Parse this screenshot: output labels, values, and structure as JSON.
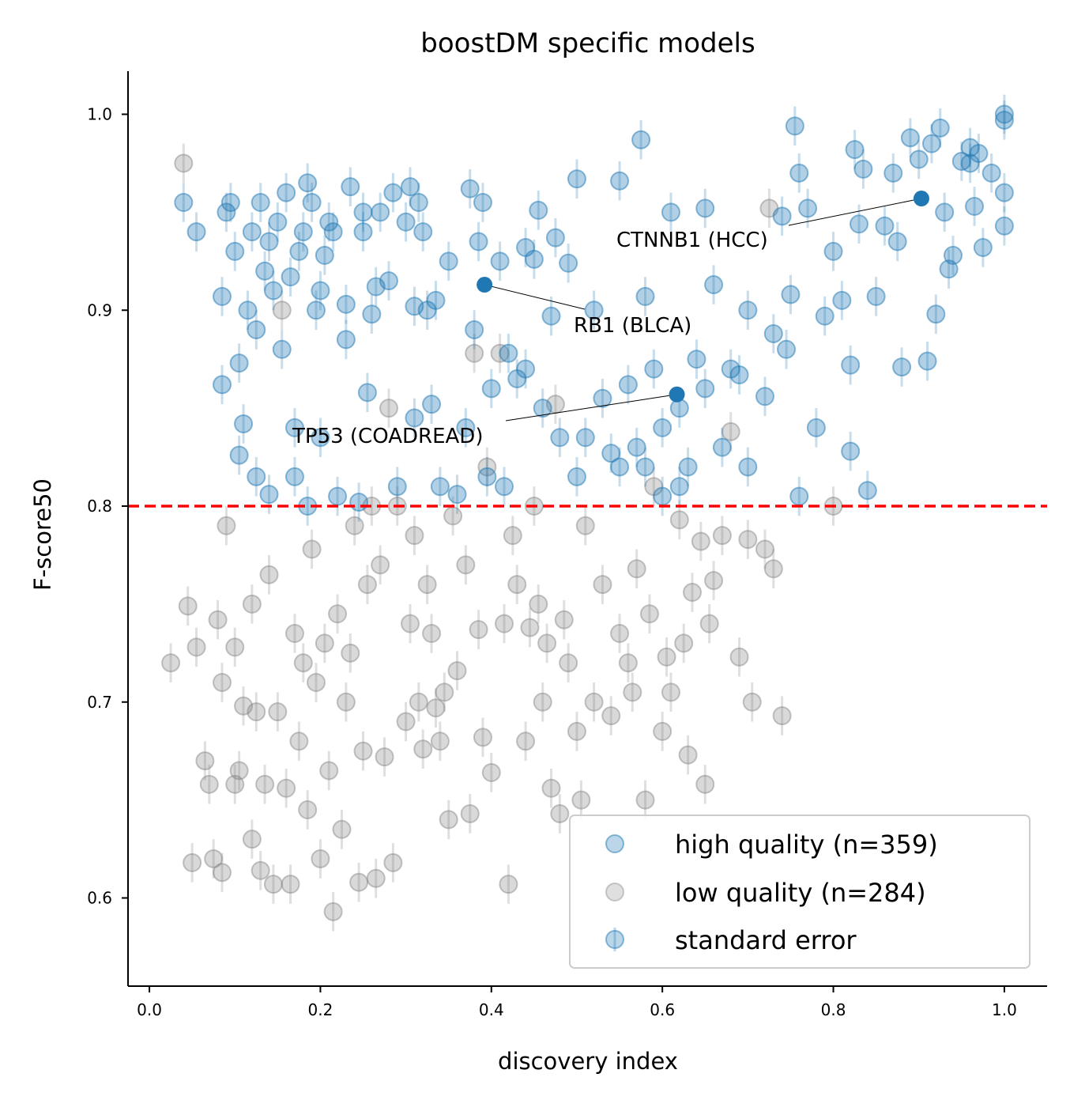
{
  "chart_data": {
    "type": "scatter",
    "title": "boostDM specific models",
    "xlabel": "discovery index",
    "ylabel": "F-score50",
    "xlim": [
      -0.025,
      1.05
    ],
    "ylim": [
      0.555,
      1.022
    ],
    "xticks": [
      0.0,
      0.2,
      0.4,
      0.6,
      0.8,
      1.0
    ],
    "xtick_labels": [
      "0.0",
      "0.2",
      "0.4",
      "0.6",
      "0.8",
      "1.0"
    ],
    "yticks": [
      0.6,
      0.7,
      0.8,
      0.9,
      1.0
    ],
    "ytick_labels": [
      "0.6",
      "0.7",
      "0.8",
      "0.9",
      "1.0"
    ],
    "threshold": {
      "y": 0.8,
      "color": "#ff0000",
      "style": "dashed"
    },
    "default_standard_error": 0.01,
    "legend": {
      "placement": "lower-right",
      "entries": [
        "high quality (n=359)",
        "low quality (n=284)",
        "standard error"
      ]
    },
    "series": [
      {
        "name": "high quality",
        "color": "#1f77b4",
        "alpha": 0.35,
        "points": [
          [
            0.04,
            0.955
          ],
          [
            0.055,
            0.94
          ],
          [
            0.085,
            0.907
          ],
          [
            0.085,
            0.862
          ],
          [
            0.09,
            0.95
          ],
          [
            0.095,
            0.955
          ],
          [
            0.1,
            0.93
          ],
          [
            0.105,
            0.873
          ],
          [
            0.105,
            0.826
          ],
          [
            0.11,
            0.842
          ],
          [
            0.115,
            0.9
          ],
          [
            0.12,
            0.94
          ],
          [
            0.125,
            0.89
          ],
          [
            0.125,
            0.815
          ],
          [
            0.13,
            0.955
          ],
          [
            0.135,
            0.92
          ],
          [
            0.14,
            0.935
          ],
          [
            0.14,
            0.806
          ],
          [
            0.145,
            0.91
          ],
          [
            0.15,
            0.945
          ],
          [
            0.155,
            0.88
          ],
          [
            0.16,
            0.96
          ],
          [
            0.165,
            0.917
          ],
          [
            0.17,
            0.84
          ],
          [
            0.17,
            0.815
          ],
          [
            0.175,
            0.93
          ],
          [
            0.18,
            0.94
          ],
          [
            0.185,
            0.965
          ],
          [
            0.185,
            0.8
          ],
          [
            0.19,
            0.955
          ],
          [
            0.195,
            0.9
          ],
          [
            0.2,
            0.91
          ],
          [
            0.2,
            0.835
          ],
          [
            0.205,
            0.928
          ],
          [
            0.21,
            0.945
          ],
          [
            0.215,
            0.94
          ],
          [
            0.22,
            0.805
          ],
          [
            0.23,
            0.903
          ],
          [
            0.23,
            0.885
          ],
          [
            0.235,
            0.963
          ],
          [
            0.245,
            0.802
          ],
          [
            0.25,
            0.95
          ],
          [
            0.25,
            0.94
          ],
          [
            0.255,
            0.858
          ],
          [
            0.26,
            0.898
          ],
          [
            0.265,
            0.912
          ],
          [
            0.27,
            0.95
          ],
          [
            0.28,
            0.915
          ],
          [
            0.285,
            0.96
          ],
          [
            0.29,
            0.81
          ],
          [
            0.3,
            0.945
          ],
          [
            0.305,
            0.963
          ],
          [
            0.31,
            0.902
          ],
          [
            0.31,
            0.845
          ],
          [
            0.315,
            0.955
          ],
          [
            0.32,
            0.94
          ],
          [
            0.325,
            0.9
          ],
          [
            0.33,
            0.852
          ],
          [
            0.335,
            0.905
          ],
          [
            0.34,
            0.81
          ],
          [
            0.35,
            0.925
          ],
          [
            0.36,
            0.806
          ],
          [
            0.37,
            0.84
          ],
          [
            0.375,
            0.962
          ],
          [
            0.38,
            0.89
          ],
          [
            0.385,
            0.935
          ],
          [
            0.39,
            0.955
          ],
          [
            0.395,
            0.815
          ],
          [
            0.4,
            0.86
          ],
          [
            0.41,
            0.925
          ],
          [
            0.415,
            0.81
          ],
          [
            0.42,
            0.878
          ],
          [
            0.43,
            0.865
          ],
          [
            0.44,
            0.932
          ],
          [
            0.44,
            0.87
          ],
          [
            0.45,
            0.926
          ],
          [
            0.455,
            0.951
          ],
          [
            0.46,
            0.85
          ],
          [
            0.47,
            0.897
          ],
          [
            0.475,
            0.937
          ],
          [
            0.48,
            0.835
          ],
          [
            0.49,
            0.924
          ],
          [
            0.5,
            0.967
          ],
          [
            0.5,
            0.815
          ],
          [
            0.51,
            0.835
          ],
          [
            0.52,
            0.9
          ],
          [
            0.53,
            0.855
          ],
          [
            0.54,
            0.827
          ],
          [
            0.55,
            0.966
          ],
          [
            0.56,
            0.862
          ],
          [
            0.57,
            0.83
          ],
          [
            0.575,
            0.987
          ],
          [
            0.58,
            0.907
          ],
          [
            0.59,
            0.87
          ],
          [
            0.6,
            0.84
          ],
          [
            0.6,
            0.805
          ],
          [
            0.61,
            0.95
          ],
          [
            0.62,
            0.85
          ],
          [
            0.63,
            0.82
          ],
          [
            0.64,
            0.875
          ],
          [
            0.65,
            0.952
          ],
          [
            0.65,
            0.86
          ],
          [
            0.66,
            0.913
          ],
          [
            0.67,
            0.83
          ],
          [
            0.68,
            0.87
          ],
          [
            0.69,
            0.867
          ],
          [
            0.7,
            0.9
          ],
          [
            0.7,
            0.82
          ],
          [
            0.72,
            0.856
          ],
          [
            0.73,
            0.888
          ],
          [
            0.74,
            0.948
          ],
          [
            0.745,
            0.88
          ],
          [
            0.75,
            0.908
          ],
          [
            0.755,
            0.994
          ],
          [
            0.76,
            0.805
          ],
          [
            0.77,
            0.952
          ],
          [
            0.78,
            0.84
          ],
          [
            0.79,
            0.897
          ],
          [
            0.8,
            0.93
          ],
          [
            0.81,
            0.905
          ],
          [
            0.82,
            0.872
          ],
          [
            0.825,
            0.982
          ],
          [
            0.83,
            0.944
          ],
          [
            0.835,
            0.972
          ],
          [
            0.85,
            0.907
          ],
          [
            0.86,
            0.943
          ],
          [
            0.87,
            0.97
          ],
          [
            0.88,
            0.871
          ],
          [
            0.89,
            0.988
          ],
          [
            0.9,
            0.977
          ],
          [
            0.91,
            0.874
          ],
          [
            0.915,
            0.985
          ],
          [
            0.92,
            0.898
          ],
          [
            0.925,
            0.993
          ],
          [
            0.93,
            0.95
          ],
          [
            0.935,
            0.921
          ],
          [
            0.94,
            0.928
          ],
          [
            0.95,
            0.976
          ],
          [
            0.96,
            0.983
          ],
          [
            0.965,
            0.953
          ],
          [
            0.97,
            0.98
          ],
          [
            0.975,
            0.932
          ],
          [
            0.985,
            0.97
          ],
          [
            1.0,
            1.0
          ],
          [
            1.0,
            0.997
          ],
          [
            1.0,
            0.96
          ],
          [
            1.0,
            0.943
          ],
          [
            0.96,
            0.975
          ],
          [
            0.76,
            0.97
          ],
          [
            0.875,
            0.935
          ],
          [
            0.82,
            0.828
          ],
          [
            0.84,
            0.808
          ],
          [
            0.55,
            0.82
          ],
          [
            0.58,
            0.82
          ],
          [
            0.62,
            0.81
          ]
        ]
      },
      {
        "name": "low quality",
        "color": "#808080",
        "alpha": 0.3,
        "points": [
          [
            0.04,
            0.975
          ],
          [
            0.025,
            0.72
          ],
          [
            0.045,
            0.749
          ],
          [
            0.05,
            0.618
          ],
          [
            0.055,
            0.728
          ],
          [
            0.065,
            0.67
          ],
          [
            0.07,
            0.658
          ],
          [
            0.075,
            0.62
          ],
          [
            0.08,
            0.742
          ],
          [
            0.085,
            0.71
          ],
          [
            0.085,
            0.613
          ],
          [
            0.09,
            0.79
          ],
          [
            0.1,
            0.728
          ],
          [
            0.1,
            0.658
          ],
          [
            0.105,
            0.665
          ],
          [
            0.11,
            0.698
          ],
          [
            0.12,
            0.75
          ],
          [
            0.12,
            0.63
          ],
          [
            0.125,
            0.695
          ],
          [
            0.13,
            0.614
          ],
          [
            0.135,
            0.658
          ],
          [
            0.14,
            0.765
          ],
          [
            0.145,
            0.607
          ],
          [
            0.15,
            0.695
          ],
          [
            0.155,
            0.9
          ],
          [
            0.16,
            0.656
          ],
          [
            0.165,
            0.607
          ],
          [
            0.17,
            0.735
          ],
          [
            0.175,
            0.68
          ],
          [
            0.18,
            0.72
          ],
          [
            0.185,
            0.645
          ],
          [
            0.19,
            0.778
          ],
          [
            0.195,
            0.71
          ],
          [
            0.2,
            0.62
          ],
          [
            0.205,
            0.73
          ],
          [
            0.21,
            0.665
          ],
          [
            0.215,
            0.593
          ],
          [
            0.22,
            0.745
          ],
          [
            0.225,
            0.635
          ],
          [
            0.23,
            0.7
          ],
          [
            0.235,
            0.725
          ],
          [
            0.24,
            0.79
          ],
          [
            0.245,
            0.608
          ],
          [
            0.25,
            0.675
          ],
          [
            0.255,
            0.76
          ],
          [
            0.26,
            0.8
          ],
          [
            0.265,
            0.61
          ],
          [
            0.27,
            0.77
          ],
          [
            0.275,
            0.672
          ],
          [
            0.28,
            0.85
          ],
          [
            0.285,
            0.618
          ],
          [
            0.29,
            0.8
          ],
          [
            0.3,
            0.69
          ],
          [
            0.305,
            0.74
          ],
          [
            0.31,
            0.785
          ],
          [
            0.315,
            0.7
          ],
          [
            0.32,
            0.676
          ],
          [
            0.325,
            0.76
          ],
          [
            0.33,
            0.735
          ],
          [
            0.335,
            0.697
          ],
          [
            0.34,
            0.68
          ],
          [
            0.345,
            0.705
          ],
          [
            0.35,
            0.64
          ],
          [
            0.355,
            0.795
          ],
          [
            0.36,
            0.716
          ],
          [
            0.37,
            0.77
          ],
          [
            0.375,
            0.643
          ],
          [
            0.38,
            0.878
          ],
          [
            0.385,
            0.737
          ],
          [
            0.39,
            0.682
          ],
          [
            0.395,
            0.82
          ],
          [
            0.4,
            0.664
          ],
          [
            0.41,
            0.878
          ],
          [
            0.415,
            0.74
          ],
          [
            0.42,
            0.607
          ],
          [
            0.425,
            0.785
          ],
          [
            0.43,
            0.76
          ],
          [
            0.44,
            0.68
          ],
          [
            0.445,
            0.738
          ],
          [
            0.45,
            0.8
          ],
          [
            0.455,
            0.75
          ],
          [
            0.46,
            0.7
          ],
          [
            0.465,
            0.73
          ],
          [
            0.47,
            0.656
          ],
          [
            0.475,
            0.852
          ],
          [
            0.48,
            0.643
          ],
          [
            0.485,
            0.742
          ],
          [
            0.49,
            0.72
          ],
          [
            0.5,
            0.685
          ],
          [
            0.505,
            0.65
          ],
          [
            0.51,
            0.79
          ],
          [
            0.52,
            0.7
          ],
          [
            0.53,
            0.76
          ],
          [
            0.54,
            0.693
          ],
          [
            0.55,
            0.735
          ],
          [
            0.56,
            0.72
          ],
          [
            0.565,
            0.705
          ],
          [
            0.57,
            0.768
          ],
          [
            0.58,
            0.65
          ],
          [
            0.585,
            0.745
          ],
          [
            0.59,
            0.81
          ],
          [
            0.6,
            0.685
          ],
          [
            0.605,
            0.723
          ],
          [
            0.61,
            0.705
          ],
          [
            0.62,
            0.793
          ],
          [
            0.625,
            0.73
          ],
          [
            0.63,
            0.673
          ],
          [
            0.635,
            0.756
          ],
          [
            0.645,
            0.782
          ],
          [
            0.65,
            0.658
          ],
          [
            0.655,
            0.74
          ],
          [
            0.66,
            0.762
          ],
          [
            0.67,
            0.785
          ],
          [
            0.69,
            0.723
          ],
          [
            0.7,
            0.783
          ],
          [
            0.705,
            0.7
          ],
          [
            0.72,
            0.778
          ],
          [
            0.73,
            0.768
          ],
          [
            0.74,
            0.693
          ],
          [
            0.725,
            0.952
          ],
          [
            0.68,
            0.838
          ],
          [
            0.8,
            0.8
          ]
        ]
      }
    ],
    "annotations": [
      {
        "label": "RB1 (BLCA)",
        "x": 0.392,
        "y": 0.913
      },
      {
        "label": "CTNNB1 (HCC)",
        "x": 0.903,
        "y": 0.957
      },
      {
        "label": "TP53 (COADREAD)",
        "x": 0.617,
        "y": 0.857
      }
    ]
  }
}
